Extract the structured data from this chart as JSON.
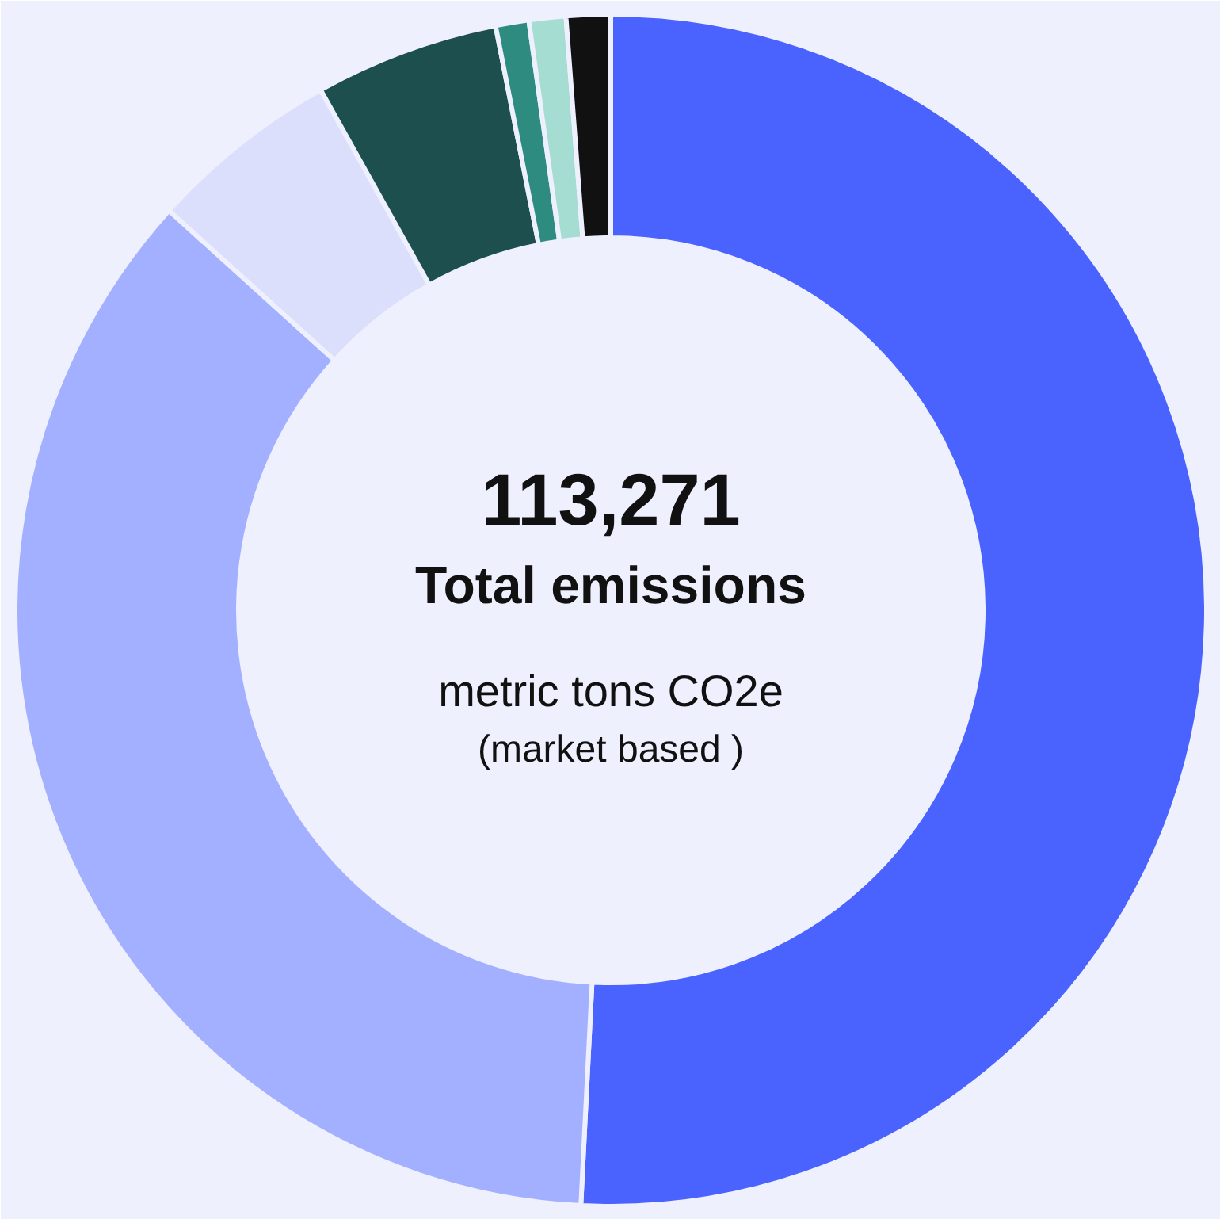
{
  "chart_data": {
    "type": "donut",
    "title": "113,271",
    "subtitle": "Total emissions",
    "annotations": [
      "metric tons CO2e",
      "(market based )"
    ],
    "categories": [
      null,
      null,
      null,
      null,
      null,
      null,
      null
    ],
    "values": [
      50.8,
      35.9,
      5.2,
      5.0,
      0.9,
      1.0,
      1.2
    ],
    "colors": [
      "#4a63ff",
      "#a3b0ff",
      "#dcdffb",
      "#1e4f4f",
      "#2e8b7f",
      "#a6ddd3",
      "#111111"
    ]
  }
}
